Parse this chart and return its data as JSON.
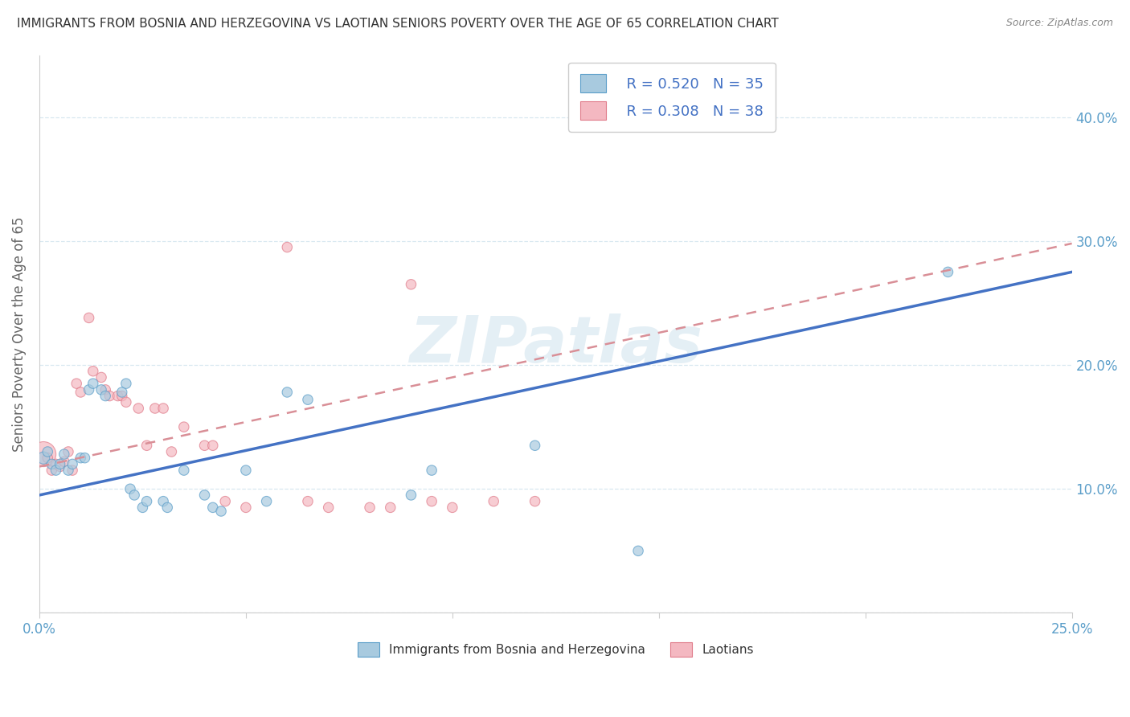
{
  "title": "IMMIGRANTS FROM BOSNIA AND HERZEGOVINA VS LAOTIAN SENIORS POVERTY OVER THE AGE OF 65 CORRELATION CHART",
  "source": "Source: ZipAtlas.com",
  "ylabel": "Seniors Poverty Over the Age of 65",
  "xlim": [
    0.0,
    0.25
  ],
  "ylim": [
    0.0,
    0.45
  ],
  "xticks": [
    0.0,
    0.05,
    0.1,
    0.15,
    0.2,
    0.25
  ],
  "xtick_labels": [
    "0.0%",
    "",
    "",
    "",
    "",
    "25.0%"
  ],
  "yticks": [
    0.0,
    0.1,
    0.2,
    0.3,
    0.4
  ],
  "ytick_labels": [
    "",
    "10.0%",
    "20.0%",
    "30.0%",
    "40.0%"
  ],
  "watermark": "ZIPatlas",
  "legend_r1": "R = 0.520",
  "legend_n1": "N = 35",
  "legend_r2": "R = 0.308",
  "legend_n2": "N = 38",
  "blue_color": "#a8cadf",
  "pink_color": "#f4b8c1",
  "blue_edge_color": "#5b9ec9",
  "pink_edge_color": "#e07b8a",
  "blue_line_color": "#4472c4",
  "pink_line_color": "#d98f97",
  "tick_color": "#5b9ec9",
  "grid_color": "#d8e8f0",
  "spine_color": "#cccccc",
  "ylabel_color": "#666666",
  "title_color": "#333333",
  "source_color": "#888888",
  "legend_text_color": "#4472c4",
  "blue_scatter": [
    [
      0.001,
      0.125
    ],
    [
      0.002,
      0.13
    ],
    [
      0.003,
      0.12
    ],
    [
      0.004,
      0.115
    ],
    [
      0.005,
      0.12
    ],
    [
      0.006,
      0.128
    ],
    [
      0.007,
      0.115
    ],
    [
      0.008,
      0.12
    ],
    [
      0.01,
      0.125
    ],
    [
      0.011,
      0.125
    ],
    [
      0.012,
      0.18
    ],
    [
      0.013,
      0.185
    ],
    [
      0.015,
      0.18
    ],
    [
      0.016,
      0.175
    ],
    [
      0.02,
      0.178
    ],
    [
      0.021,
      0.185
    ],
    [
      0.022,
      0.1
    ],
    [
      0.023,
      0.095
    ],
    [
      0.025,
      0.085
    ],
    [
      0.026,
      0.09
    ],
    [
      0.03,
      0.09
    ],
    [
      0.031,
      0.085
    ],
    [
      0.035,
      0.115
    ],
    [
      0.04,
      0.095
    ],
    [
      0.042,
      0.085
    ],
    [
      0.044,
      0.082
    ],
    [
      0.05,
      0.115
    ],
    [
      0.055,
      0.09
    ],
    [
      0.06,
      0.178
    ],
    [
      0.065,
      0.172
    ],
    [
      0.09,
      0.095
    ],
    [
      0.095,
      0.115
    ],
    [
      0.12,
      0.135
    ],
    [
      0.145,
      0.05
    ],
    [
      0.22,
      0.275
    ]
  ],
  "pink_scatter": [
    [
      0.001,
      0.128
    ],
    [
      0.002,
      0.125
    ],
    [
      0.003,
      0.115
    ],
    [
      0.004,
      0.12
    ],
    [
      0.005,
      0.118
    ],
    [
      0.006,
      0.122
    ],
    [
      0.007,
      0.13
    ],
    [
      0.008,
      0.115
    ],
    [
      0.009,
      0.185
    ],
    [
      0.01,
      0.178
    ],
    [
      0.012,
      0.238
    ],
    [
      0.013,
      0.195
    ],
    [
      0.015,
      0.19
    ],
    [
      0.016,
      0.18
    ],
    [
      0.017,
      0.175
    ],
    [
      0.019,
      0.175
    ],
    [
      0.02,
      0.175
    ],
    [
      0.021,
      0.17
    ],
    [
      0.024,
      0.165
    ],
    [
      0.026,
      0.135
    ],
    [
      0.028,
      0.165
    ],
    [
      0.03,
      0.165
    ],
    [
      0.032,
      0.13
    ],
    [
      0.035,
      0.15
    ],
    [
      0.04,
      0.135
    ],
    [
      0.042,
      0.135
    ],
    [
      0.045,
      0.09
    ],
    [
      0.05,
      0.085
    ],
    [
      0.06,
      0.295
    ],
    [
      0.065,
      0.09
    ],
    [
      0.07,
      0.085
    ],
    [
      0.08,
      0.085
    ],
    [
      0.085,
      0.085
    ],
    [
      0.09,
      0.265
    ],
    [
      0.095,
      0.09
    ],
    [
      0.1,
      0.085
    ],
    [
      0.11,
      0.09
    ],
    [
      0.12,
      0.09
    ]
  ],
  "blue_dot_sizes": [
    120,
    80,
    80,
    80,
    80,
    80,
    80,
    80,
    80,
    80,
    80,
    80,
    80,
    80,
    80,
    80,
    80,
    80,
    80,
    80,
    80,
    80,
    80,
    80,
    80,
    80,
    80,
    80,
    80,
    80,
    80,
    80,
    80,
    80,
    80
  ],
  "pink_dot_sizes": [
    500,
    80,
    80,
    80,
    80,
    80,
    80,
    80,
    80,
    80,
    80,
    80,
    80,
    80,
    80,
    80,
    80,
    80,
    80,
    80,
    80,
    80,
    80,
    80,
    80,
    80,
    80,
    80,
    80,
    80,
    80,
    80,
    80,
    80,
    80,
    80,
    80,
    80
  ],
  "blue_line_x": [
    0.0,
    0.25
  ],
  "blue_line_y": [
    0.095,
    0.275
  ],
  "pink_line_x": [
    0.0,
    0.25
  ],
  "pink_line_y": [
    0.118,
    0.298
  ]
}
